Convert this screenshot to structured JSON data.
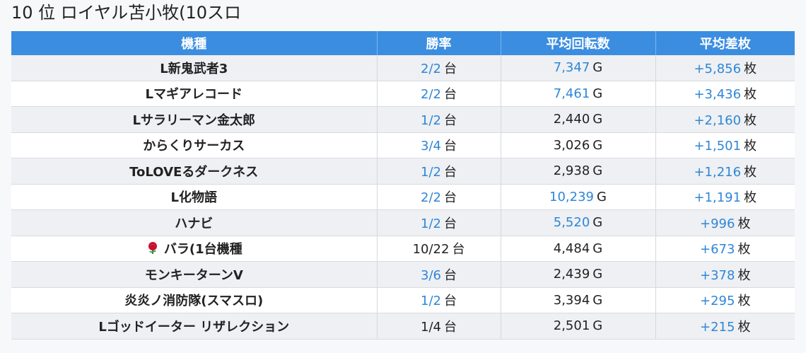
{
  "title": "10 位 ロイヤル苫小牧(10スロ",
  "columns": [
    "機種",
    "勝率",
    "平均回転数",
    "平均差枚"
  ],
  "units": {
    "win": "台",
    "spins": "G",
    "diff": "枚"
  },
  "rows": [
    {
      "machine": "L新鬼武者3",
      "win": "2/2",
      "win_blue": true,
      "spins": "7,347",
      "spins_blue": true,
      "diff": "+5,856",
      "diff_blue": true
    },
    {
      "machine": "Lマギアレコード",
      "win": "2/2",
      "win_blue": true,
      "spins": "7,461",
      "spins_blue": true,
      "diff": "+3,436",
      "diff_blue": true
    },
    {
      "machine": "Lサラリーマン金太郎",
      "win": "1/2",
      "win_blue": true,
      "spins": "2,440",
      "spins_blue": false,
      "diff": "+2,160",
      "diff_blue": true
    },
    {
      "machine": "からくりサーカス",
      "win": "3/4",
      "win_blue": true,
      "spins": "3,026",
      "spins_blue": false,
      "diff": "+1,501",
      "diff_blue": true
    },
    {
      "machine": "ToLOVEるダークネス",
      "win": "1/2",
      "win_blue": true,
      "spins": "2,938",
      "spins_blue": false,
      "diff": "+1,216",
      "diff_blue": true
    },
    {
      "machine": "L化物語",
      "win": "2/2",
      "win_blue": true,
      "spins": "10,239",
      "spins_blue": true,
      "diff": "+1,191",
      "diff_blue": true
    },
    {
      "machine": "ハナビ",
      "win": "1/2",
      "win_blue": true,
      "spins": "5,520",
      "spins_blue": true,
      "diff": "+996",
      "diff_blue": true
    },
    {
      "machine": "バラ(1台機種",
      "icon": "rose-icon",
      "win": "10/22",
      "win_blue": false,
      "spins": "4,484",
      "spins_blue": false,
      "diff": "+673",
      "diff_blue": true
    },
    {
      "machine": "モンキーターンV",
      "win": "3/6",
      "win_blue": true,
      "spins": "2,439",
      "spins_blue": false,
      "diff": "+378",
      "diff_blue": true
    },
    {
      "machine": "炎炎ノ消防隊(スマスロ)",
      "win": "1/2",
      "win_blue": true,
      "spins": "3,394",
      "spins_blue": false,
      "diff": "+295",
      "diff_blue": true
    },
    {
      "machine": "Lゴッドイーター リザレクション",
      "win": "1/4",
      "win_blue": false,
      "spins": "2,501",
      "spins_blue": false,
      "diff": "+215",
      "diff_blue": true
    }
  ],
  "colors": {
    "header_bg": "#3b8de0",
    "accent_blue": "#2f86d8",
    "row_alt": "#eef0f3"
  }
}
